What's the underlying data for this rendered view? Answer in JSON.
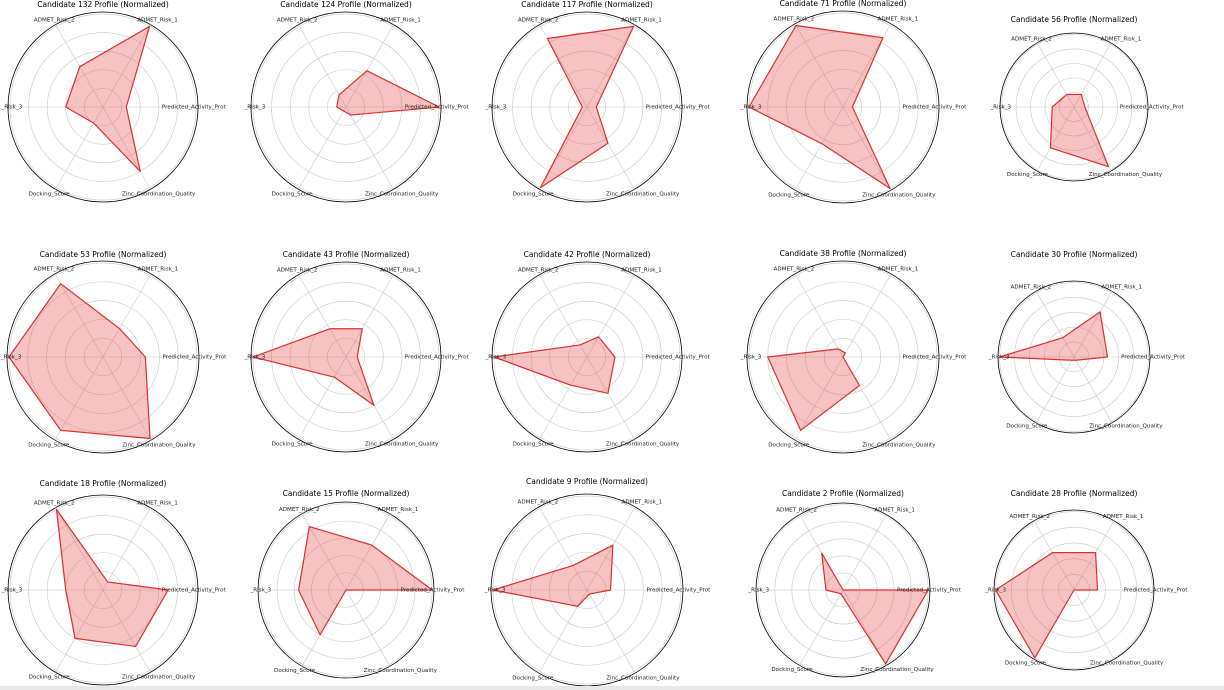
{
  "figure": {
    "axis_labels": [
      "Predicted_Activity_Prot",
      "ADMET_Risk_1",
      "ADMET_Risk_2",
      "_Risk_3",
      "Docking_Score",
      "Zinc_Coordination_Quality"
    ]
  },
  "chart_data": [
    {
      "type": "radar",
      "title": "Candidate 132 Profile (Normalized)",
      "categories": [
        "Predicted_Activity_Prot",
        "ADMET_Risk_1",
        "ADMET_Risk_2",
        "_Risk_3",
        "Docking_Score",
        "Zinc_Coordination_Quality"
      ],
      "values": [
        0.25,
        1.0,
        0.5,
        0.4,
        0.2,
        0.8
      ],
      "ylim": [
        0,
        1
      ]
    },
    {
      "type": "radar",
      "title": "Candidate 124 Profile (Normalized)",
      "categories": [
        "Predicted_Activity_Prot",
        "ADMET_Risk_1",
        "ADMET_Risk_2",
        "_Risk_3",
        "Docking_Score",
        "Zinc_Coordination_Quality"
      ],
      "values": [
        1.0,
        0.45,
        0.15,
        0.1,
        0.05,
        0.1
      ],
      "ylim": [
        0,
        1
      ]
    },
    {
      "type": "radar",
      "title": "Candidate 117 Profile (Normalized)",
      "categories": [
        "Predicted_Activity_Prot",
        "ADMET_Risk_1",
        "ADMET_Risk_2",
        "_Risk_3",
        "Docking_Score",
        "Zinc_Coordination_Quality"
      ],
      "values": [
        0.1,
        1.0,
        0.85,
        0.05,
        1.0,
        0.45
      ],
      "ylim": [
        0,
        1
      ]
    },
    {
      "type": "radar",
      "title": "Candidate 71 Profile (Normalized)",
      "categories": [
        "Predicted_Activity_Prot",
        "ADMET_Risk_1",
        "ADMET_Risk_2",
        "_Risk_3",
        "Docking_Score",
        "Zinc_Coordination_Quality"
      ],
      "values": [
        0.1,
        0.85,
        1.0,
        1.0,
        0.45,
        1.0
      ],
      "ylim": [
        0,
        1
      ]
    },
    {
      "type": "radar",
      "title": "Candidate 56 Profile (Normalized)",
      "categories": [
        "Predicted_Activity_Prot",
        "ADMET_Risk_1",
        "ADMET_Risk_2",
        "_Risk_3",
        "Docking_Score",
        "Zinc_Coordination_Quality"
      ],
      "values": [
        0.15,
        0.2,
        0.2,
        0.3,
        0.65,
        0.95
      ],
      "ylim": [
        0,
        1
      ]
    },
    {
      "type": "radar",
      "title": "Candidate 53 Profile (Normalized)",
      "categories": [
        "Predicted_Activity_Prot",
        "ADMET_Risk_1",
        "ADMET_Risk_2",
        "_Risk_3",
        "Docking_Score",
        "Zinc_Coordination_Quality"
      ],
      "values": [
        0.45,
        0.35,
        0.9,
        1.0,
        0.9,
        1.0
      ],
      "ylim": [
        0,
        1
      ]
    },
    {
      "type": "radar",
      "title": "Candidate 43 Profile (Normalized)",
      "categories": [
        "Predicted_Activity_Prot",
        "ADMET_Risk_1",
        "ADMET_Risk_2",
        "_Risk_3",
        "Docking_Score",
        "Zinc_Coordination_Quality"
      ],
      "values": [
        0.12,
        0.35,
        0.35,
        1.0,
        0.25,
        0.6
      ],
      "ylim": [
        0,
        1
      ]
    },
    {
      "type": "radar",
      "title": "Candidate 42 Profile (Normalized)",
      "categories": [
        "Predicted_Activity_Prot",
        "ADMET_Risk_1",
        "ADMET_Risk_2",
        "_Risk_3",
        "Docking_Score",
        "Zinc_Coordination_Quality"
      ],
      "values": [
        0.3,
        0.25,
        0.15,
        1.0,
        0.35,
        0.45
      ],
      "ylim": [
        0,
        1
      ]
    },
    {
      "type": "radar",
      "title": "Candidate 38 Profile (Normalized)",
      "categories": [
        "Predicted_Activity_Prot",
        "ADMET_Risk_1",
        "ADMET_Risk_2",
        "_Risk_3",
        "Docking_Score",
        "Zinc_Coordination_Quality"
      ],
      "values": [
        0.0,
        0.05,
        0.1,
        0.8,
        0.9,
        0.35
      ],
      "ylim": [
        0,
        1
      ]
    },
    {
      "type": "radar",
      "title": "Candidate 30 Profile (Normalized)",
      "categories": [
        "Predicted_Activity_Prot",
        "ADMET_Risk_1",
        "ADMET_Risk_2",
        "_Risk_3",
        "Docking_Score",
        "Zinc_Coordination_Quality"
      ],
      "values": [
        0.45,
        0.7,
        0.3,
        1.0,
        0.05,
        0.05
      ],
      "ylim": [
        0,
        1
      ]
    },
    {
      "type": "radar",
      "title": "Candidate 18 Profile (Normalized)",
      "categories": [
        "Predicted_Activity_Prot",
        "ADMET_Risk_1",
        "ADMET_Risk_2",
        "_Risk_3",
        "Docking_Score",
        "Zinc_Coordination_Quality"
      ],
      "values": [
        0.7,
        0.1,
        1.0,
        0.4,
        0.6,
        0.7
      ],
      "ylim": [
        0,
        1
      ]
    },
    {
      "type": "radar",
      "title": "Candidate 15 Profile (Normalized)",
      "categories": [
        "Predicted_Activity_Prot",
        "ADMET_Risk_1",
        "ADMET_Risk_2",
        "_Risk_3",
        "Docking_Score",
        "Zinc_Coordination_Quality"
      ],
      "values": [
        1.0,
        0.6,
        0.85,
        0.55,
        0.6,
        0.0
      ],
      "ylim": [
        0,
        1
      ]
    },
    {
      "type": "radar",
      "title": "Candidate 9 Profile (Normalized)",
      "categories": [
        "Predicted_Activity_Prot",
        "ADMET_Risk_1",
        "ADMET_Risk_2",
        "_Risk_3",
        "Docking_Score",
        "Zinc_Coordination_Quality"
      ],
      "values": [
        0.25,
        0.55,
        0.3,
        1.0,
        0.2,
        0.05
      ],
      "ylim": [
        0,
        1
      ]
    },
    {
      "type": "radar",
      "title": "Candidate 2 Profile (Normalized)",
      "categories": [
        "Predicted_Activity_Prot",
        "ADMET_Risk_1",
        "ADMET_Risk_2",
        "_Risk_3",
        "Docking_Score",
        "Zinc_Coordination_Quality"
      ],
      "values": [
        1.0,
        0.0,
        0.5,
        0.2,
        0.05,
        1.0
      ],
      "ylim": [
        0,
        1
      ]
    },
    {
      "type": "radar",
      "title": "Candidate 28 Profile (Normalized)",
      "categories": [
        "Predicted_Activity_Prot",
        "ADMET_Risk_1",
        "ADMET_Risk_2",
        "_Risk_3",
        "Docking_Score",
        "Zinc_Coordination_Quality"
      ],
      "values": [
        0.3,
        0.55,
        0.55,
        1.0,
        1.0,
        0.0
      ],
      "ylim": [
        0,
        1
      ]
    }
  ]
}
